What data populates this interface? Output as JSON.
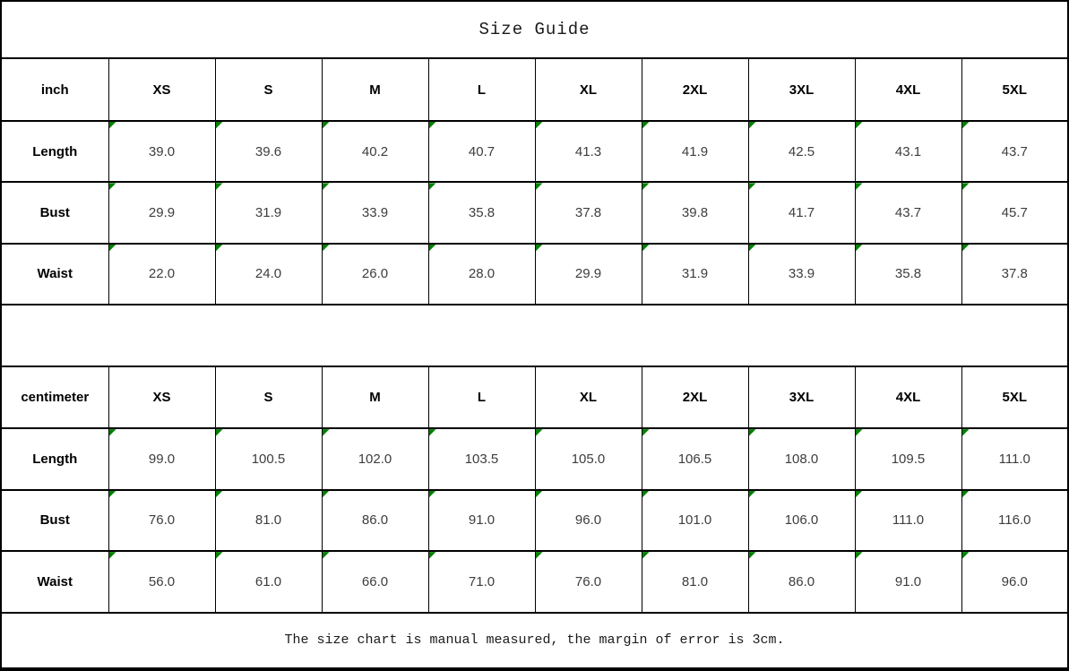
{
  "title": "Size Guide",
  "footer_note": "The size chart is manual measured, the margin of error is 3cm.",
  "marker_color": "#008000",
  "tables": [
    {
      "unit": "inch",
      "sizes": [
        "XS",
        "S",
        "M",
        "L",
        "XL",
        "2XL",
        "3XL",
        "4XL",
        "5XL"
      ],
      "rows": [
        {
          "label": "Length",
          "values": [
            "39.0",
            "39.6",
            "40.2",
            "40.7",
            "41.3",
            "41.9",
            "42.5",
            "43.1",
            "43.7"
          ]
        },
        {
          "label": "Bust",
          "values": [
            "29.9",
            "31.9",
            "33.9",
            "35.8",
            "37.8",
            "39.8",
            "41.7",
            "43.7",
            "45.7"
          ]
        },
        {
          "label": "Waist",
          "values": [
            "22.0",
            "24.0",
            "26.0",
            "28.0",
            "29.9",
            "31.9",
            "33.9",
            "35.8",
            "37.8"
          ]
        }
      ]
    },
    {
      "unit": "centimeter",
      "sizes": [
        "XS",
        "S",
        "M",
        "L",
        "XL",
        "2XL",
        "3XL",
        "4XL",
        "5XL"
      ],
      "rows": [
        {
          "label": "Length",
          "values": [
            "99.0",
            "100.5",
            "102.0",
            "103.5",
            "105.0",
            "106.5",
            "108.0",
            "109.5",
            "111.0"
          ]
        },
        {
          "label": "Bust",
          "values": [
            "76.0",
            "81.0",
            "86.0",
            "91.0",
            "96.0",
            "101.0",
            "106.0",
            "111.0",
            "116.0"
          ]
        },
        {
          "label": "Waist",
          "values": [
            "56.0",
            "61.0",
            "66.0",
            "71.0",
            "76.0",
            "81.0",
            "86.0",
            "91.0",
            "96.0"
          ]
        }
      ]
    }
  ]
}
